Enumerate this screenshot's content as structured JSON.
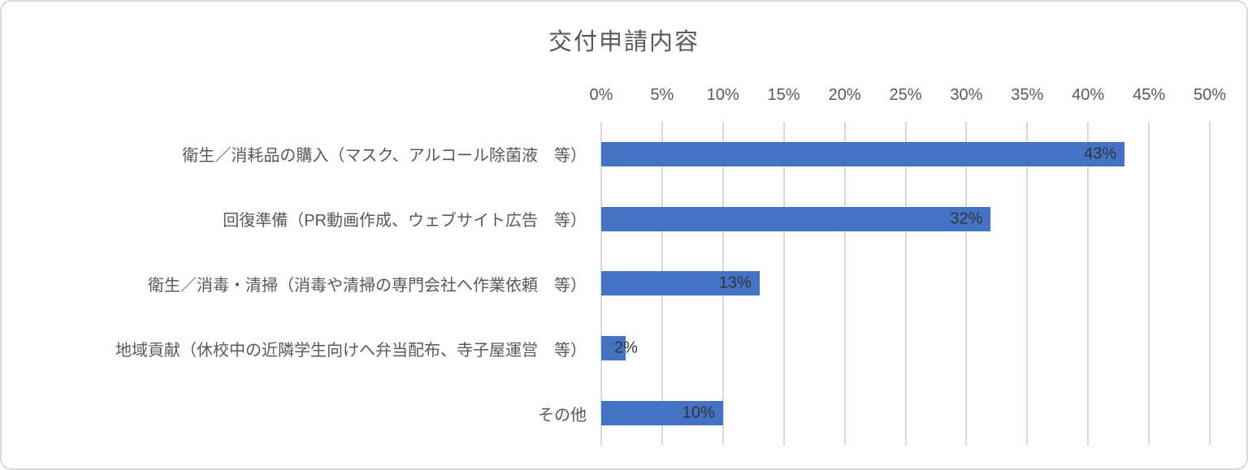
{
  "chart": {
    "title": "交付申請内容",
    "colors": {
      "bar": "#4472C4",
      "gridline": "#D9D9D9",
      "axis_text": "#595959",
      "category_text": "#595959",
      "data_label_text": "#333333",
      "title_text": "#595959",
      "frame_border": "#D9D9D9",
      "background": "#FFFFFF"
    }
  },
  "chart_data": {
    "type": "bar",
    "orientation": "horizontal",
    "title": "交付申請内容",
    "categories": [
      "衛生／消耗品の購入（マスク、アルコール除菌液　等）",
      "回復準備（PR動画作成、ウェブサイト広告　等）",
      "衛生／消毒・清掃（消毒や清掃の専門会社へ作業依頼　等）",
      "地域貢献（休校中の近隣学生向けへ弁当配布、寺子屋運営　等）",
      "その他"
    ],
    "values": [
      43,
      32,
      13,
      2,
      10
    ],
    "data_labels": [
      "43%",
      "32%",
      "13%",
      "2%",
      "10%"
    ],
    "xlim": [
      0,
      50
    ],
    "x_tick_step": 5,
    "x_ticks": [
      "0%",
      "5%",
      "10%",
      "15%",
      "20%",
      "25%",
      "30%",
      "35%",
      "40%",
      "45%",
      "50%"
    ],
    "xlabel": "",
    "ylabel": "",
    "grid": true,
    "legend": false
  }
}
